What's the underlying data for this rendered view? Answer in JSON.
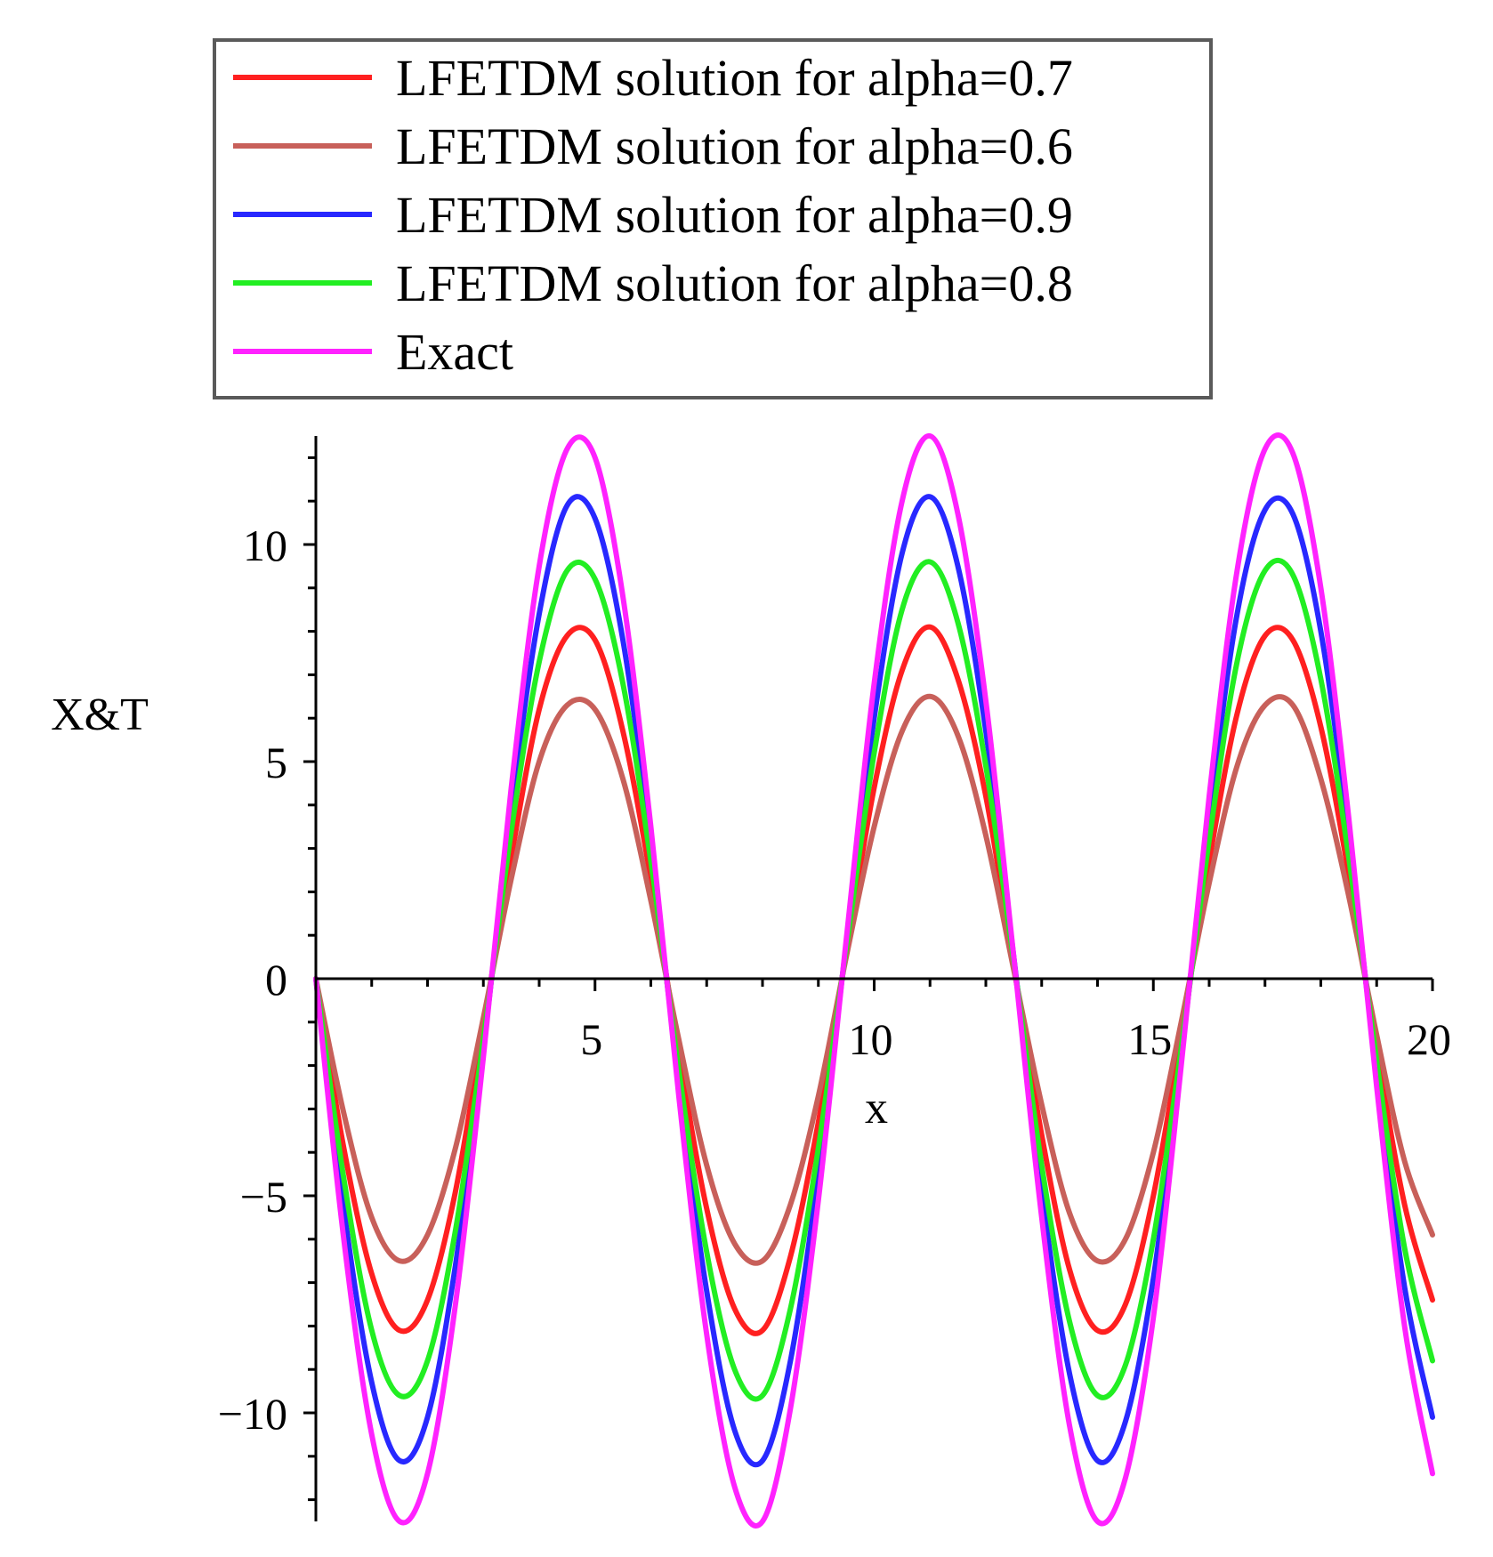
{
  "chart_data": {
    "type": "line",
    "title": "",
    "xlabel": "x",
    "ylabel": "X&T",
    "xlim": [
      0,
      20
    ],
    "ylim": [
      -12.5,
      12.5
    ],
    "grid": false,
    "legend_position": "top",
    "x_ticks": [
      {
        "value": 5,
        "label": "5"
      },
      {
        "value": 10,
        "label": "10"
      },
      {
        "value": 15,
        "label": "15"
      },
      {
        "value": 20,
        "label": "20"
      }
    ],
    "y_ticks": [
      {
        "value": -10,
        "label": "−10"
      },
      {
        "value": -5,
        "label": "−5"
      },
      {
        "value": 0,
        "label": "0"
      },
      {
        "value": 5,
        "label": "5"
      },
      {
        "value": 10,
        "label": "10"
      }
    ],
    "series": [
      {
        "name": "LFETDM solution for alpha=0.7",
        "color": "#ff2020",
        "x": [
          0,
          0.5,
          1,
          1.5,
          2,
          2.5,
          3,
          3.5,
          4,
          4.5,
          5,
          5.5,
          6,
          6.5,
          7,
          7.5,
          8,
          8.5,
          9,
          9.5,
          10,
          10.5,
          11,
          11.5,
          12,
          12.5,
          13,
          13.5,
          14,
          14.5,
          15,
          15.5,
          16,
          16.5,
          17,
          17.5,
          18,
          18.5,
          19,
          19.5,
          20
        ],
        "y": [
          0,
          -3.9,
          -6.8,
          -8.1,
          -7.4,
          -4.9,
          -1.1,
          2.8,
          6.2,
          7.9,
          7.8,
          5.7,
          2.3,
          -1.7,
          -5.3,
          -7.6,
          -8.1,
          -6.4,
          -3.3,
          0.6,
          4.4,
          7.1,
          8.1,
          6.9,
          4.2,
          0.3,
          -3.6,
          -6.7,
          -8.1,
          -7.5,
          -5.0,
          -1.3,
          2.7,
          6.1,
          7.9,
          7.8,
          5.8,
          2.4,
          -1.6,
          -5.2,
          -7.4
        ]
      },
      {
        "name": "LFETDM solution for alpha=0.6",
        "color": "#c8605a",
        "x": [
          0,
          0.5,
          1,
          1.5,
          2,
          2.5,
          3,
          3.5,
          4,
          4.5,
          5,
          5.5,
          6,
          6.5,
          7,
          7.5,
          8,
          8.5,
          9,
          9.5,
          10,
          10.5,
          11,
          11.5,
          12,
          12.5,
          13,
          13.5,
          14,
          14.5,
          15,
          15.5,
          16,
          16.5,
          17,
          17.5,
          18,
          18.5,
          19,
          19.5,
          20
        ],
        "y": [
          0,
          -3.1,
          -5.5,
          -6.5,
          -5.9,
          -3.9,
          -0.9,
          2.3,
          5.0,
          6.3,
          6.2,
          4.6,
          1.8,
          -1.4,
          -4.3,
          -6.1,
          -6.5,
          -5.2,
          -2.7,
          0.5,
          3.5,
          5.7,
          6.5,
          5.6,
          3.3,
          0.2,
          -2.9,
          -5.4,
          -6.5,
          -6.0,
          -4.0,
          -1.0,
          2.2,
          4.9,
          6.3,
          6.3,
          4.6,
          1.9,
          -1.3,
          -4.2,
          -5.9
        ]
      },
      {
        "name": "LFETDM solution for alpha=0.9",
        "color": "#2828ff",
        "x": [
          0,
          0.5,
          1,
          1.5,
          2,
          2.5,
          3,
          3.5,
          4,
          4.5,
          5,
          5.5,
          6,
          6.5,
          7,
          7.5,
          8,
          8.5,
          9,
          9.5,
          10,
          10.5,
          11,
          11.5,
          12,
          12.5,
          13,
          13.5,
          14,
          14.5,
          15,
          15.5,
          16,
          16.5,
          17,
          17.5,
          18,
          18.5,
          19,
          19.5,
          20
        ],
        "y": [
          0,
          -5.3,
          -9.3,
          -11.1,
          -10.1,
          -6.6,
          -1.6,
          3.9,
          8.4,
          10.9,
          10.6,
          7.8,
          3.1,
          -2.4,
          -7.2,
          -10.4,
          -11.1,
          -8.8,
          -4.5,
          0.8,
          6.0,
          9.8,
          11.1,
          9.5,
          5.7,
          0.5,
          -4.9,
          -9.1,
          -11.1,
          -10.2,
          -6.9,
          -1.8,
          3.7,
          8.4,
          10.8,
          10.7,
          8.0,
          3.3,
          -2.2,
          -7.1,
          -10.1
        ]
      },
      {
        "name": "LFETDM solution for alpha=0.8",
        "color": "#22ee22",
        "x": [
          0,
          0.5,
          1,
          1.5,
          2,
          2.5,
          3,
          3.5,
          4,
          4.5,
          5,
          5.5,
          6,
          6.5,
          7,
          7.5,
          8,
          8.5,
          9,
          9.5,
          10,
          10.5,
          11,
          11.5,
          12,
          12.5,
          13,
          13.5,
          14,
          14.5,
          15,
          15.5,
          16,
          16.5,
          17,
          17.5,
          18,
          18.5,
          19,
          19.5,
          20
        ],
        "y": [
          0,
          -4.6,
          -8.1,
          -9.6,
          -8.8,
          -5.8,
          -1.4,
          3.4,
          7.3,
          9.4,
          9.2,
          6.8,
          2.7,
          -2.1,
          -6.3,
          -9.0,
          -9.6,
          -7.6,
          -3.9,
          0.7,
          5.2,
          8.5,
          9.6,
          8.2,
          4.9,
          0.4,
          -4.3,
          -7.9,
          -9.6,
          -8.9,
          -6.0,
          -1.6,
          3.2,
          7.3,
          9.4,
          9.3,
          6.9,
          2.8,
          -1.9,
          -6.2,
          -8.8
        ]
      },
      {
        "name": "Exact",
        "color": "#ff22ff",
        "x": [
          0,
          0.5,
          1,
          1.5,
          2,
          2.5,
          3,
          3.5,
          4,
          4.5,
          5,
          5.5,
          6,
          6.5,
          7,
          7.5,
          8,
          8.5,
          9,
          9.5,
          10,
          10.5,
          11,
          11.5,
          12,
          12.5,
          13,
          13.5,
          14,
          14.5,
          15,
          15.5,
          16,
          16.5,
          17,
          17.5,
          18,
          18.5,
          19,
          19.5,
          20
        ],
        "y": [
          0,
          -6.0,
          -10.5,
          -12.5,
          -11.4,
          -7.5,
          -1.8,
          4.4,
          9.5,
          12.2,
          12.0,
          8.8,
          3.5,
          -2.7,
          -8.2,
          -11.7,
          -12.5,
          -9.9,
          -5.1,
          0.9,
          6.8,
          11.0,
          12.5,
          10.7,
          6.4,
          0.5,
          -5.5,
          -10.3,
          -12.5,
          -11.5,
          -7.8,
          -2.0,
          4.2,
          9.4,
          12.2,
          12.1,
          9.0,
          3.7,
          -2.5,
          -8.0,
          -11.4
        ]
      }
    ]
  }
}
